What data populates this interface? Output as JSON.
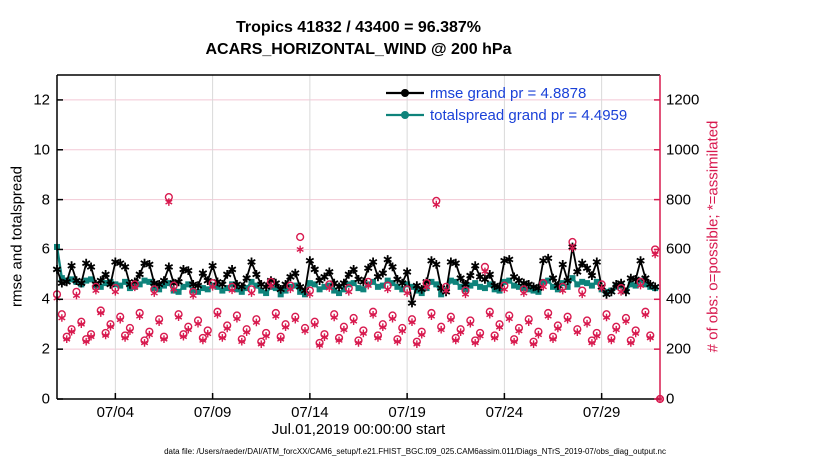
{
  "title": {
    "line1": "Tropics 41832 / 43400 = 96.387%",
    "line2": "ACARS_HORIZONTAL_WIND @ 200 hPa"
  },
  "footer": {
    "data_file": "data file: /Users/raeder/DAI/ATM_forcXX/CAM6_setup/f.e21.FHIST_BGC.f09_025.CAM6assim.011/Diags_NTrS_2019-07/obs_diag_output.nc"
  },
  "colors": {
    "rmse_line": "#000000",
    "totalspread_line": "#0E837B",
    "obs_crimson": "#D81A4F",
    "legend_text": "#1B41D8",
    "grid_horizontal": "#F3C8D5",
    "grid_vertical": "#D9D9D9",
    "spine_black": "#000000"
  },
  "chart_data": {
    "type": "line",
    "title": "Tropics 41832 / 43400 = 96.387% | ACARS_HORIZONTAL_WIND @ 200 hPa",
    "xlabel": "Jul.01,2019 00:00:00 start",
    "ylabel_left": "rmse and totalspread",
    "ylabel_right": "# of obs: o=possible; *=assimilated",
    "grid": true,
    "bins_per_day": 4,
    "xlim_days": [
      0,
      31
    ],
    "x_tick_days": [
      3,
      8,
      13,
      18,
      23,
      28
    ],
    "x_tick_labels": [
      "07/04",
      "07/09",
      "07/14",
      "07/19",
      "07/24",
      "07/29"
    ],
    "ylim_left": [
      0,
      13
    ],
    "yticks_left": [
      0,
      2,
      4,
      6,
      8,
      10,
      12
    ],
    "ylim_right": [
      0,
      1300
    ],
    "yticks_right": [
      0,
      200,
      400,
      600,
      800,
      1000,
      1200
    ],
    "legend_position": "top-center-inside",
    "legend": [
      {
        "series": "rmse",
        "label": "rmse grand pr = 4.8878"
      },
      {
        "series": "totalspread",
        "label": "totalspread grand pr = 4.4959"
      }
    ],
    "series": [
      {
        "name": "rmse",
        "axis": "left",
        "color": "#000000",
        "marker": "asterisk",
        "line": true,
        "values": [
          5.2,
          4.65,
          4.7,
          5.35,
          4.75,
          4.65,
          5.45,
          5.3,
          4.6,
          4.75,
          5.0,
          4.6,
          5.5,
          5.45,
          5.3,
          4.6,
          4.7,
          5.0,
          5.45,
          5.4,
          4.65,
          4.6,
          4.75,
          5.3,
          4.65,
          4.7,
          5.2,
          5.15,
          4.6,
          4.55,
          5.05,
          4.75,
          5.35,
          4.7,
          4.6,
          5.0,
          5.2,
          4.6,
          4.5,
          4.85,
          5.5,
          5.0,
          4.6,
          4.5,
          4.75,
          4.65,
          4.4,
          4.6,
          4.9,
          5.05,
          4.5,
          4.35,
          5.55,
          5.2,
          4.75,
          4.9,
          5.1,
          4.65,
          4.5,
          4.65,
          5.0,
          5.2,
          4.8,
          4.7,
          5.25,
          5.5,
          4.9,
          5.05,
          5.6,
          5.3,
          4.8,
          4.65,
          5.1,
          3.85,
          4.55,
          4.4,
          4.7,
          5.55,
          5.4,
          4.45,
          4.3,
          5.5,
          5.45,
          4.85,
          4.6,
          4.95,
          5.35,
          4.9,
          4.8,
          5.0,
          4.55,
          4.5,
          5.55,
          5.6,
          4.9,
          4.75,
          4.65,
          4.6,
          4.5,
          4.45,
          5.55,
          5.65,
          4.85,
          4.55,
          5.4,
          4.75,
          6.1,
          5.1,
          5.45,
          5.25,
          4.95,
          5.5,
          4.5,
          4.2,
          4.3,
          4.6,
          4.65,
          4.3,
          4.85,
          4.8,
          5.55,
          4.85,
          4.6,
          4.5,
          null
        ]
      },
      {
        "name": "totalspread",
        "axis": "left",
        "color": "#0E837B",
        "marker": "square",
        "line": true,
        "values": [
          6.1,
          4.85,
          4.75,
          4.8,
          4.7,
          4.6,
          4.75,
          4.8,
          4.55,
          4.5,
          4.65,
          4.7,
          4.6,
          4.55,
          4.7,
          4.45,
          4.5,
          4.6,
          4.75,
          4.7,
          4.45,
          4.4,
          4.55,
          4.65,
          4.35,
          4.3,
          4.5,
          4.6,
          4.35,
          4.3,
          4.45,
          4.4,
          4.55,
          4.5,
          4.35,
          4.45,
          4.6,
          4.4,
          4.3,
          4.45,
          4.7,
          4.55,
          4.35,
          4.25,
          4.5,
          4.45,
          4.2,
          4.35,
          4.5,
          4.55,
          4.3,
          4.2,
          4.65,
          4.6,
          4.4,
          4.5,
          4.55,
          4.35,
          4.25,
          4.4,
          4.6,
          4.65,
          4.45,
          4.4,
          4.6,
          4.7,
          4.5,
          4.55,
          4.75,
          4.65,
          4.5,
          4.4,
          4.6,
          4.5,
          4.35,
          4.25,
          4.45,
          4.7,
          4.6,
          4.2,
          4.35,
          4.75,
          4.7,
          4.5,
          4.4,
          4.55,
          4.65,
          4.5,
          4.45,
          4.6,
          4.4,
          4.35,
          4.7,
          4.75,
          4.55,
          4.5,
          4.45,
          4.4,
          4.35,
          4.3,
          4.7,
          4.75,
          4.5,
          4.4,
          4.65,
          4.5,
          4.85,
          4.6,
          4.7,
          4.65,
          4.55,
          4.7,
          4.4,
          4.3,
          4.35,
          4.5,
          4.55,
          4.35,
          4.6,
          4.55,
          4.75,
          4.6,
          4.5,
          4.45,
          null
        ]
      },
      {
        "name": "n_possible",
        "axis": "right",
        "color": "#D81A4F",
        "marker": "circle",
        "line": false,
        "values": [
          420,
          340,
          250,
          280,
          430,
          310,
          240,
          260,
          450,
          355,
          265,
          300,
          445,
          330,
          255,
          285,
          460,
          345,
          235,
          270,
          440,
          320,
          250,
          810,
          455,
          340,
          260,
          290,
          430,
          315,
          245,
          275,
          465,
          350,
          255,
          295,
          450,
          335,
          240,
          280,
          440,
          320,
          230,
          265,
          470,
          345,
          250,
          300,
          455,
          330,
          650,
          285,
          435,
          310,
          225,
          260,
          460,
          340,
          245,
          290,
          445,
          325,
          235,
          275,
          470,
          350,
          255,
          300,
          455,
          335,
          240,
          285,
          440,
          320,
          230,
          270,
          465,
          345,
          795,
          290,
          450,
          330,
          245,
          280,
          435,
          315,
          235,
          265,
          530,
          350,
          255,
          300,
          455,
          335,
          240,
          285,
          440,
          320,
          230,
          270,
          465,
          345,
          250,
          295,
          450,
          330,
          630,
          280,
          435,
          315,
          235,
          265,
          460,
          340,
          245,
          290,
          445,
          325,
          235,
          275,
          470,
          350,
          255,
          600,
          0
        ]
      },
      {
        "name": "n_assimilated",
        "axis": "right",
        "color": "#D81A4F",
        "marker": "asterisk",
        "line": false,
        "values": [
          405,
          325,
          240,
          270,
          415,
          300,
          230,
          250,
          435,
          345,
          255,
          290,
          430,
          318,
          245,
          272,
          448,
          332,
          225,
          258,
          425,
          308,
          240,
          790,
          440,
          328,
          250,
          278,
          415,
          302,
          235,
          262,
          450,
          338,
          245,
          283,
          436,
          322,
          230,
          268,
          425,
          307,
          220,
          253,
          455,
          332,
          240,
          288,
          440,
          318,
          600,
          273,
          420,
          298,
          215,
          248,
          445,
          327,
          235,
          278,
          430,
          312,
          225,
          263,
          455,
          338,
          245,
          288,
          440,
          322,
          230,
          273,
          425,
          308,
          220,
          258,
          450,
          332,
          780,
          278,
          435,
          318,
          235,
          268,
          420,
          302,
          225,
          253,
          512,
          338,
          245,
          288,
          440,
          322,
          230,
          273,
          425,
          308,
          220,
          258,
          450,
          332,
          240,
          283,
          435,
          318,
          605,
          268,
          420,
          302,
          225,
          253,
          445,
          327,
          235,
          278,
          430,
          312,
          225,
          263,
          455,
          338,
          245,
          580,
          0
        ]
      }
    ]
  }
}
